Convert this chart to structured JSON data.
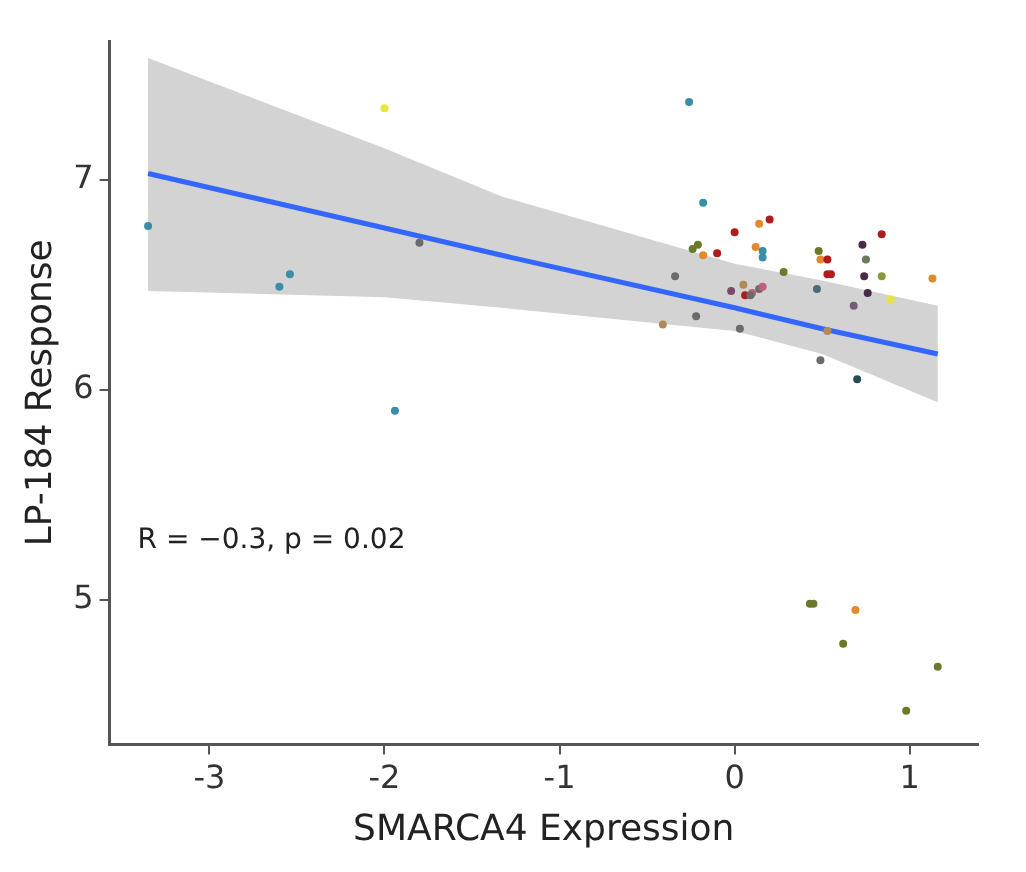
{
  "chart_data": {
    "type": "scatter",
    "xlabel": "SMARCA4 Expression",
    "ylabel": "LP-184 Response",
    "xlim": [
      -3.57,
      1.39
    ],
    "ylim": [
      4.31,
      7.66
    ],
    "xticks": [
      -3,
      -2,
      -1,
      0,
      1
    ],
    "yticks": [
      5,
      6,
      7
    ],
    "grid": false,
    "legend": false,
    "marker": "circle",
    "annotations": [
      "R = −0.3, p = 0.02"
    ],
    "series": [
      {
        "type": "scatter",
        "x": [
          -3.35,
          -2.0,
          -2.6,
          -2.54,
          -1.8,
          -1.94,
          -0.26,
          -0.18,
          0.14,
          0.2,
          0.0,
          -0.24,
          -0.21,
          -0.18,
          -0.1,
          0.12,
          0.16,
          0.16,
          -0.34,
          0.28,
          0.48,
          0.49,
          0.53,
          0.53,
          0.55,
          0.73,
          0.75,
          0.84,
          0.74,
          0.84,
          0.76,
          0.89,
          1.13,
          0.47,
          0.68,
          0.1,
          0.06,
          -0.02,
          0.05,
          0.09,
          0.14,
          0.16,
          -0.41,
          -0.22,
          0.03,
          0.53,
          0.49,
          0.7,
          0.43,
          0.45,
          0.69,
          0.62,
          1.16,
          0.98
        ],
        "values": [
          6.78,
          7.34,
          6.49,
          6.55,
          6.7,
          5.9,
          7.37,
          6.89,
          6.79,
          6.81,
          6.75,
          6.67,
          6.69,
          6.64,
          6.65,
          6.68,
          6.66,
          6.63,
          6.54,
          6.56,
          6.66,
          6.62,
          6.62,
          6.55,
          6.55,
          6.69,
          6.62,
          6.74,
          6.54,
          6.54,
          6.46,
          6.43,
          6.53,
          6.48,
          6.4,
          6.46,
          6.45,
          6.47,
          6.5,
          6.45,
          6.48,
          6.49,
          6.31,
          6.35,
          6.29,
          6.28,
          6.14,
          6.05,
          4.98,
          4.98,
          4.95,
          4.79,
          4.68,
          4.47
        ],
        "colors": [
          "#3b8ea5",
          "#e6e63c",
          "#3b8ea5",
          "#3b8ea5",
          "#6b6b6b",
          "#3b8ea5",
          "#3b8ea5",
          "#3b8ea5",
          "#e08a2c",
          "#b01c1c",
          "#b01c1c",
          "#6b7a2a",
          "#6b7a2a",
          "#e08a2c",
          "#b01c1c",
          "#e08a2c",
          "#3b8ea5",
          "#3b8ea5",
          "#6b6b6b",
          "#6b7a2a",
          "#6b7a2a",
          "#e08a2c",
          "#b01c1c",
          "#b01c1c",
          "#b01c1c",
          "#4a2a45",
          "#6b7a5a",
          "#b01c1c",
          "#4a2a45",
          "#8a9a3a",
          "#4a2a45",
          "#e6e63c",
          "#e08a2c",
          "#4a6a7a",
          "#7a5a7a",
          "#c0607a",
          "#b01c1c",
          "#7a4a6a",
          "#b08a5a",
          "#6b6b6b",
          "#6b6b6b",
          "#c0607a",
          "#b08a5a",
          "#6b6b6b",
          "#6b6b6b",
          "#b08a5a",
          "#6b6b6b",
          "#2a4a5a",
          "#6b7a2a",
          "#6b7a2a",
          "#e08a2c",
          "#6b7a2a",
          "#6b7a2a",
          "#6b7a2a"
        ]
      },
      {
        "type": "line",
        "marker": "none",
        "color": "#3366ff",
        "x": [
          -3.35,
          -2,
          -1.33,
          0,
          0.5,
          1.16
        ],
        "values": [
          7.03,
          6.77,
          6.64,
          6.39,
          6.29,
          6.17
        ],
        "lower": [
          6.47,
          6.44,
          6.39,
          6.28,
          6.17,
          5.94
        ],
        "upper": [
          7.58,
          7.15,
          6.92,
          6.6,
          6.52,
          6.4
        ]
      }
    ]
  }
}
